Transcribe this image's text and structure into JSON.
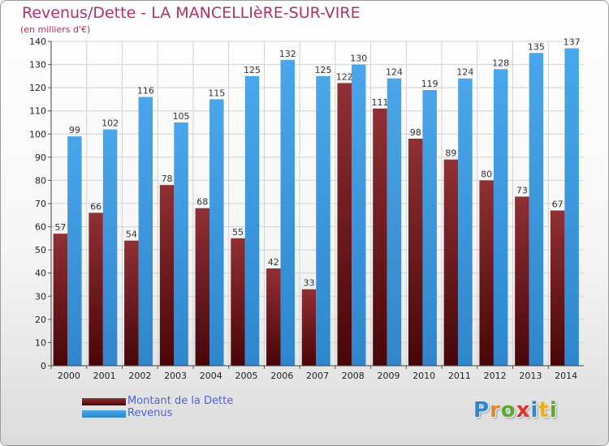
{
  "chart_data": {
    "type": "bar",
    "title": "Revenus/Dette - LA MANCELLIèRE-SUR-VIRE",
    "subtitle": "(en milliers d'€)",
    "categories": [
      "2000",
      "2001",
      "2002",
      "2003",
      "2004",
      "2005",
      "2006",
      "2007",
      "2008",
      "2009",
      "2010",
      "2011",
      "2012",
      "2013",
      "2014"
    ],
    "series": [
      {
        "name": "Montant de la Dette",
        "color": "#7a1c20",
        "values": [
          57,
          66,
          54,
          78,
          68,
          55,
          42,
          33,
          122,
          111,
          98,
          89,
          80,
          73,
          67
        ]
      },
      {
        "name": "Revenus",
        "color": "#3f9be0",
        "values": [
          99,
          102,
          116,
          105,
          115,
          125,
          132,
          125,
          130,
          124,
          119,
          124,
          128,
          135,
          137
        ]
      }
    ],
    "ylim": [
      0,
      140
    ],
    "yticks": [
      0,
      10,
      20,
      30,
      40,
      50,
      60,
      70,
      80,
      90,
      100,
      110,
      120,
      130,
      140
    ],
    "grid": true,
    "data_labels": true,
    "legend_position": "bottom-left"
  },
  "logo": {
    "letters": [
      {
        "ch": "P",
        "color": "#2e86cc"
      },
      {
        "ch": "r",
        "color": "#e0892a"
      },
      {
        "ch": "o",
        "color": "#5aa832"
      },
      {
        "ch": "x",
        "color": "#d8342c"
      },
      {
        "ch": "i",
        "color": "#2e86cc"
      },
      {
        "ch": "t",
        "color": "#e8b01e"
      },
      {
        "ch": "i",
        "color": "#5aa832"
      }
    ]
  }
}
